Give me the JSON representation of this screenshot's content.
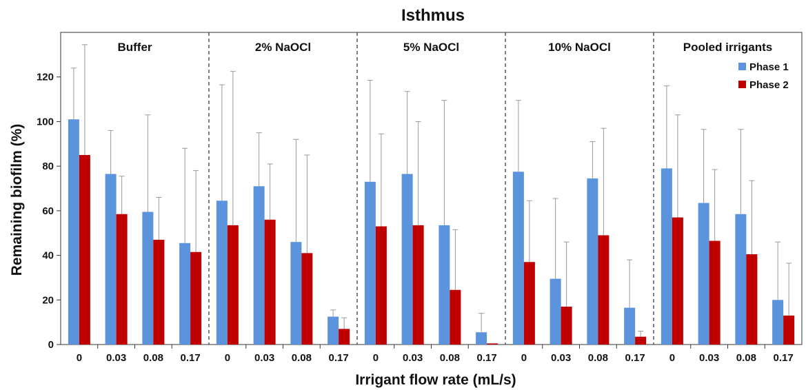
{
  "chart_data": {
    "type": "bar",
    "title": "Isthmus",
    "xlabel": "Irrigant flow rate (mL/s)",
    "ylabel": "Remaining biofilm (%)",
    "ylim": [
      0,
      140
    ],
    "yticks": [
      0,
      20,
      40,
      60,
      80,
      100,
      120
    ],
    "categories": [
      "0",
      "0.03",
      "0.08",
      "0.17"
    ],
    "legend_position": "top-right",
    "colors": {
      "phase1": "#5b93dd",
      "phase2": "#c00000",
      "error_bar": "#999999",
      "divider": "#555555"
    },
    "legend": [
      {
        "name": "Phase 1",
        "color": "#5b93dd"
      },
      {
        "name": "Phase 2",
        "color": "#c00000"
      }
    ],
    "panels": [
      {
        "name": "Buffer",
        "phase1": {
          "values": [
            101,
            76.5,
            59.5,
            45.5
          ],
          "errors": [
            23,
            19.5,
            43.5,
            42.5
          ]
        },
        "phase2": {
          "values": [
            85,
            58.5,
            47,
            41.5
          ],
          "errors": [
            49.5,
            17,
            19,
            36.5
          ]
        }
      },
      {
        "name": "2% NaOCl",
        "phase1": {
          "values": [
            64.5,
            71,
            46,
            12.5
          ],
          "errors": [
            52,
            24,
            46,
            3
          ]
        },
        "phase2": {
          "values": [
            53.5,
            56,
            41,
            7
          ],
          "errors": [
            69,
            25,
            44,
            5
          ]
        }
      },
      {
        "name": "5% NaOCl",
        "phase1": {
          "values": [
            73,
            76.5,
            53.5,
            5.5
          ],
          "errors": [
            45.5,
            37,
            56,
            8.5
          ]
        },
        "phase2": {
          "values": [
            53,
            53.5,
            24.5,
            0.5
          ],
          "errors": [
            41.5,
            46.5,
            27,
            0
          ]
        }
      },
      {
        "name": "10% NaOCl",
        "phase1": {
          "values": [
            77.5,
            29.5,
            74.5,
            16.5
          ],
          "errors": [
            32,
            36,
            16.5,
            21.5
          ]
        },
        "phase2": {
          "values": [
            37,
            17,
            49,
            3.5
          ],
          "errors": [
            27.5,
            29,
            48,
            2.5
          ]
        }
      },
      {
        "name": "Pooled irrigants",
        "phase1": {
          "values": [
            79,
            63.5,
            58.5,
            20
          ],
          "errors": [
            37,
            33,
            38,
            26
          ]
        },
        "phase2": {
          "values": [
            57,
            46.5,
            40.5,
            13
          ],
          "errors": [
            46,
            32,
            33,
            23.5
          ]
        }
      }
    ]
  }
}
